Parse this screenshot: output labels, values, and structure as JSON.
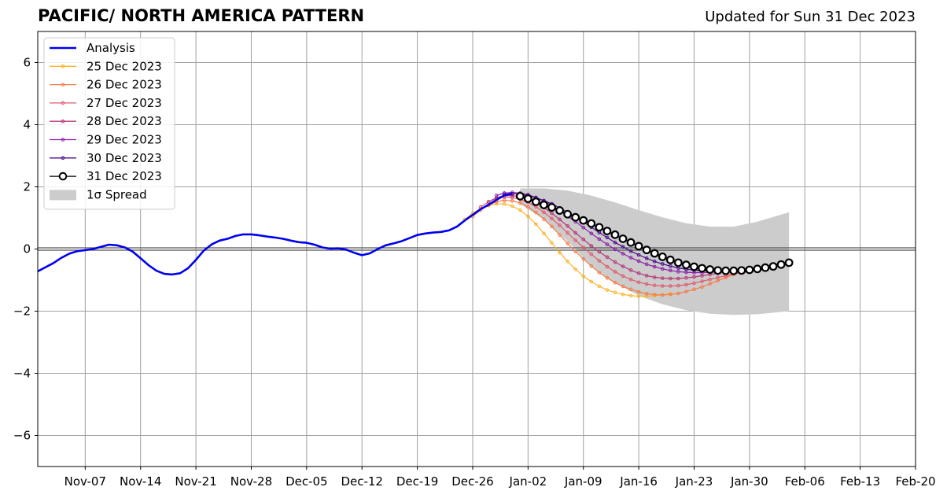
{
  "chart_data": {
    "type": "line",
    "title": "PACIFIC/ NORTH AMERICA PATTERN",
    "subtitle": "Updated for Sun 31 Dec 2023",
    "x_ticks": [
      "Nov-07",
      "Nov-14",
      "Nov-21",
      "Nov-28",
      "Dec-05",
      "Dec-12",
      "Dec-19",
      "Dec-26",
      "Jan-02",
      "Jan-09",
      "Jan-16",
      "Jan-23",
      "Jan-30",
      "Feb-06",
      "Feb-13",
      "Feb-20"
    ],
    "x_range": [
      "2023-11-01",
      "2024-02-20"
    ],
    "y_ticks": [
      -6,
      -4,
      -2,
      0,
      2,
      4,
      6
    ],
    "ylim": [
      -7,
      7
    ],
    "grid": true,
    "legend_position": "top-left",
    "analysis": {
      "name": "Analysis",
      "color": "#0000ee",
      "points": [
        [
          "2023-11-01",
          -0.72
        ],
        [
          "2023-11-03",
          -0.45
        ],
        [
          "2023-11-04",
          -0.28
        ],
        [
          "2023-11-05",
          -0.15
        ],
        [
          "2023-11-06",
          -0.07
        ],
        [
          "2023-11-08",
          0.0
        ],
        [
          "2023-11-09",
          0.07
        ],
        [
          "2023-11-10",
          0.14
        ],
        [
          "2023-11-11",
          0.12
        ],
        [
          "2023-11-12",
          0.05
        ],
        [
          "2023-11-13",
          -0.08
        ],
        [
          "2023-11-14",
          -0.3
        ],
        [
          "2023-11-15",
          -0.52
        ],
        [
          "2023-11-16",
          -0.7
        ],
        [
          "2023-11-17",
          -0.8
        ],
        [
          "2023-11-18",
          -0.82
        ],
        [
          "2023-11-19",
          -0.78
        ],
        [
          "2023-11-20",
          -0.62
        ],
        [
          "2023-11-21",
          -0.35
        ],
        [
          "2023-11-22",
          -0.05
        ],
        [
          "2023-11-23",
          0.15
        ],
        [
          "2023-11-24",
          0.27
        ],
        [
          "2023-11-25",
          0.33
        ],
        [
          "2023-11-26",
          0.42
        ],
        [
          "2023-11-27",
          0.47
        ],
        [
          "2023-11-28",
          0.47
        ],
        [
          "2023-11-29",
          0.44
        ],
        [
          "2023-11-30",
          0.4
        ],
        [
          "2023-12-01",
          0.37
        ],
        [
          "2023-12-02",
          0.33
        ],
        [
          "2023-12-03",
          0.27
        ],
        [
          "2023-12-04",
          0.22
        ],
        [
          "2023-12-05",
          0.2
        ],
        [
          "2023-12-06",
          0.14
        ],
        [
          "2023-12-07",
          0.05
        ],
        [
          "2023-12-08",
          0.01
        ],
        [
          "2023-12-09",
          0.02
        ],
        [
          "2023-12-10",
          -0.02
        ],
        [
          "2023-12-11",
          -0.12
        ],
        [
          "2023-12-12",
          -0.2
        ],
        [
          "2023-12-13",
          -0.14
        ],
        [
          "2023-12-14",
          0.0
        ],
        [
          "2023-12-15",
          0.12
        ],
        [
          "2023-12-16",
          0.18
        ],
        [
          "2023-12-17",
          0.25
        ],
        [
          "2023-12-18",
          0.35
        ],
        [
          "2023-12-19",
          0.45
        ],
        [
          "2023-12-20",
          0.5
        ],
        [
          "2023-12-21",
          0.53
        ],
        [
          "2023-12-22",
          0.55
        ],
        [
          "2023-12-23",
          0.6
        ],
        [
          "2023-12-24",
          0.72
        ],
        [
          "2023-12-25",
          0.92
        ],
        [
          "2023-12-26",
          1.1
        ],
        [
          "2023-12-27",
          1.28
        ],
        [
          "2023-12-28",
          1.42
        ],
        [
          "2023-12-29",
          1.58
        ],
        [
          "2023-12-30",
          1.73
        ],
        [
          "2023-12-31",
          1.78
        ]
      ]
    },
    "forecasts": [
      {
        "name": "25 Dec 2023",
        "color": "#f9b42a",
        "start": "2023-12-25",
        "end": "2024-01-20",
        "values": [
          0.95,
          1.15,
          1.3,
          1.4,
          1.45,
          1.45,
          1.38,
          1.25,
          1.05,
          0.8,
          0.5,
          0.2,
          -0.12,
          -0.4,
          -0.65,
          -0.88,
          -1.05,
          -1.2,
          -1.32,
          -1.4,
          -1.46,
          -1.5,
          -1.52,
          -1.52,
          -1.5,
          -1.47,
          -1.44
        ]
      },
      {
        "name": "26 Dec 2023",
        "color": "#f37b49",
        "start": "2023-12-26",
        "end": "2024-01-28",
        "values": [
          1.05,
          1.25,
          1.42,
          1.52,
          1.57,
          1.55,
          1.48,
          1.35,
          1.18,
          0.96,
          0.72,
          0.45,
          0.18,
          -0.08,
          -0.32,
          -0.55,
          -0.76,
          -0.93,
          -1.08,
          -1.2,
          -1.3,
          -1.38,
          -1.44,
          -1.47,
          -1.48,
          -1.46,
          -1.43,
          -1.37,
          -1.3,
          -1.22,
          -1.12,
          -1.02,
          -0.92,
          -0.82
        ]
      },
      {
        "name": "27 Dec 2023",
        "color": "#df5a6e",
        "start": "2023-12-27",
        "end": "2024-01-30",
        "values": [
          1.35,
          1.52,
          1.63,
          1.67,
          1.66,
          1.6,
          1.5,
          1.36,
          1.18,
          0.98,
          0.76,
          0.52,
          0.28,
          0.05,
          -0.17,
          -0.38,
          -0.57,
          -0.73,
          -0.87,
          -0.98,
          -1.07,
          -1.13,
          -1.17,
          -1.19,
          -1.19,
          -1.18,
          -1.15,
          -1.1,
          -1.04,
          -0.98,
          -0.92,
          -0.86,
          -0.8,
          -0.76,
          -0.73
        ]
      },
      {
        "name": "28 Dec 2023",
        "color": "#b73779",
        "start": "2023-12-28",
        "end": "2024-01-28",
        "values": [
          1.52,
          1.65,
          1.72,
          1.72,
          1.68,
          1.6,
          1.48,
          1.33,
          1.15,
          0.95,
          0.74,
          0.52,
          0.31,
          0.1,
          -0.09,
          -0.26,
          -0.42,
          -0.56,
          -0.68,
          -0.78,
          -0.86,
          -0.91,
          -0.94,
          -0.95,
          -0.95,
          -0.93,
          -0.9,
          -0.86,
          -0.82,
          -0.78,
          -0.74,
          -0.7
        ]
      },
      {
        "name": "29 Dec 2023",
        "color": "#8c1fa8",
        "start": "2023-12-29",
        "end": "2024-01-28",
        "values": [
          1.72,
          1.8,
          1.82,
          1.8,
          1.75,
          1.66,
          1.54,
          1.4,
          1.24,
          1.06,
          0.88,
          0.69,
          0.5,
          0.32,
          0.15,
          -0.01,
          -0.15,
          -0.28,
          -0.39,
          -0.49,
          -0.57,
          -0.64,
          -0.69,
          -0.73,
          -0.75,
          -0.76,
          -0.76,
          -0.75,
          -0.73,
          -0.71,
          -0.69
        ]
      },
      {
        "name": "30 Dec 2023",
        "color": "#4a0c8c",
        "start": "2023-12-30",
        "end": "2024-01-28",
        "values": [
          1.76,
          1.78,
          1.76,
          1.72,
          1.65,
          1.56,
          1.45,
          1.32,
          1.18,
          1.03,
          0.87,
          0.7,
          0.53,
          0.37,
          0.21,
          0.07,
          -0.07,
          -0.19,
          -0.3,
          -0.4,
          -0.48,
          -0.55,
          -0.61,
          -0.65,
          -0.68,
          -0.7,
          -0.71,
          -0.71,
          -0.7,
          -0.69
        ]
      },
      {
        "name": "31 Dec 2023",
        "color": "#000000",
        "start": "2024-01-01",
        "end": "2024-02-04",
        "values": [
          1.7,
          1.62,
          1.52,
          1.42,
          1.34,
          1.24,
          1.12,
          1.02,
          0.92,
          0.82,
          0.7,
          0.58,
          0.46,
          0.33,
          0.21,
          0.09,
          -0.03,
          -0.14,
          -0.25,
          -0.35,
          -0.44,
          -0.51,
          -0.57,
          -0.62,
          -0.66,
          -0.69,
          -0.7,
          -0.7,
          -0.69,
          -0.67,
          -0.64,
          -0.6,
          -0.56,
          -0.5,
          -0.44
        ]
      }
    ],
    "spread": {
      "name": "1σ Spread",
      "color": "#cccccc",
      "points": [
        [
          "2024-01-01",
          1.95,
          1.45
        ],
        [
          "2024-01-04",
          1.95,
          0.95
        ],
        [
          "2024-01-07",
          1.88,
          0.25
        ],
        [
          "2024-01-10",
          1.72,
          -0.55
        ],
        [
          "2024-01-13",
          1.5,
          -1.1
        ],
        [
          "2024-01-16",
          1.25,
          -1.5
        ],
        [
          "2024-01-19",
          1.02,
          -1.78
        ],
        [
          "2024-01-22",
          0.83,
          -1.97
        ],
        [
          "2024-01-25",
          0.72,
          -2.08
        ],
        [
          "2024-01-28",
          0.72,
          -2.12
        ],
        [
          "2024-01-31",
          0.88,
          -2.1
        ],
        [
          "2024-02-04",
          1.18,
          -2.0
        ]
      ]
    }
  }
}
